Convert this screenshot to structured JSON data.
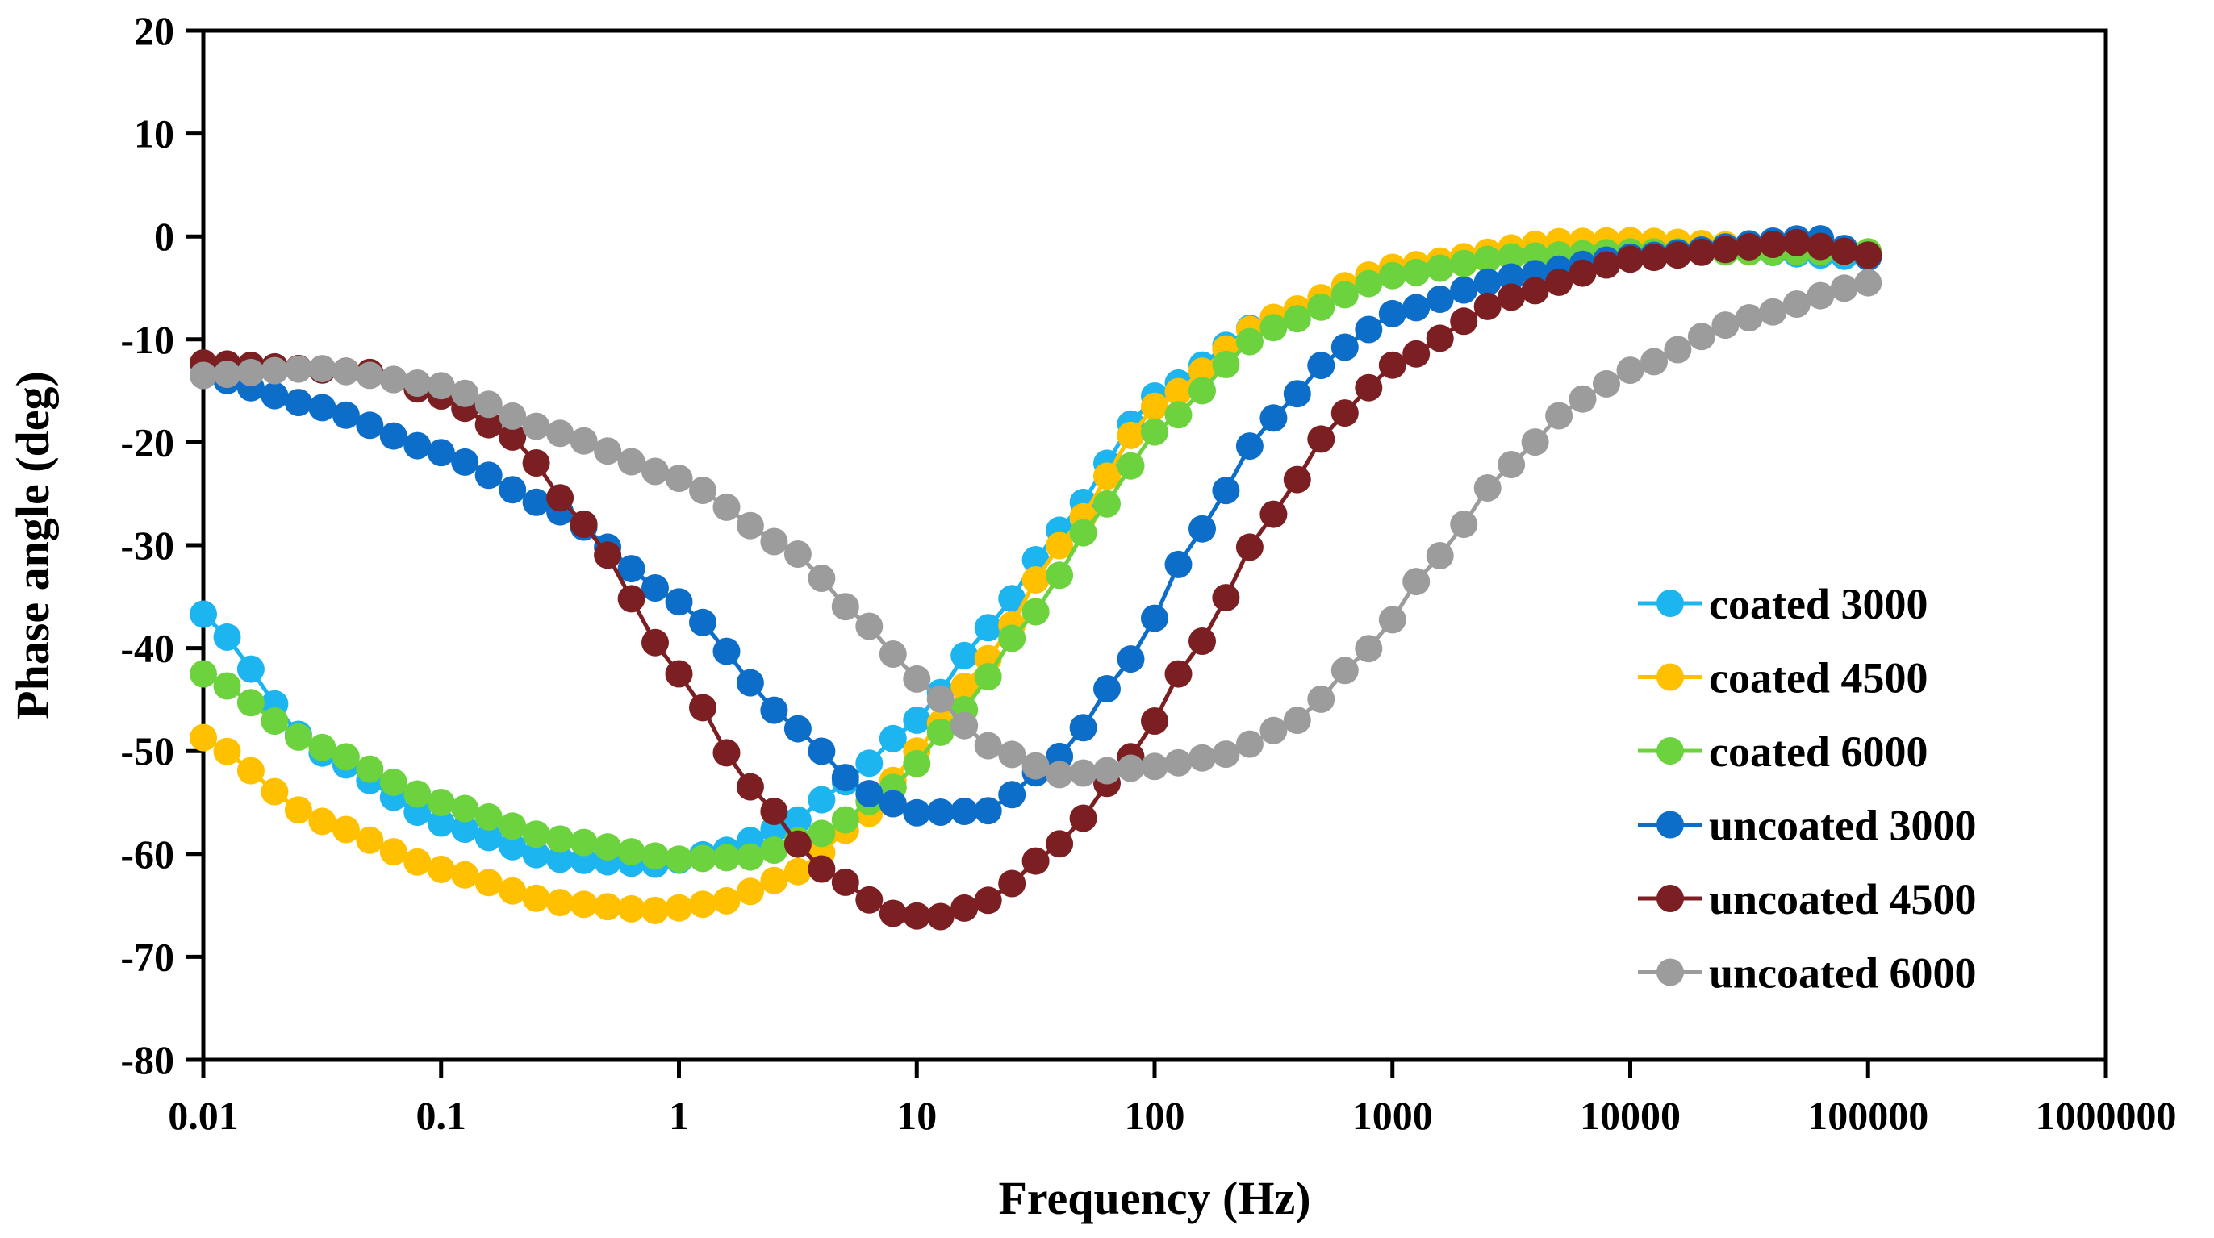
{
  "chart_data": {
    "type": "line",
    "title": "",
    "xlabel": "Frequency (Hz)",
    "ylabel": "Phase angle (deg)",
    "xscale": "log",
    "xlim": [
      0.01,
      1000000
    ],
    "ylim": [
      -80,
      20
    ],
    "xticks": [
      0.01,
      0.1,
      1,
      10,
      100,
      1000,
      10000,
      100000,
      1000000
    ],
    "xtick_labels": [
      "0.01",
      "0.1",
      "1",
      "10",
      "100",
      "1000",
      "10000",
      "100000",
      "1000000"
    ],
    "yticks": [
      -80,
      -70,
      -60,
      -50,
      -40,
      -30,
      -20,
      -10,
      0,
      10,
      20
    ],
    "ytick_labels": [
      "-80",
      "-70",
      "-60",
      "-50",
      "-40",
      "-30",
      "-20",
      "-10",
      "0",
      "10",
      "20"
    ],
    "grid": false,
    "legend_position": "right",
    "x_range_hz": [
      0.01,
      100000
    ],
    "points_per_series": 71,
    "series": [
      {
        "name": "coated 3000",
        "color": "#1CB5F0",
        "anchors": [
          [
            0.01,
            -36.7
          ],
          [
            0.03,
            -50
          ],
          [
            0.1,
            -57
          ],
          [
            0.3,
            -60.5
          ],
          [
            0.8,
            -61
          ],
          [
            1.5,
            -59.8
          ],
          [
            3,
            -57
          ],
          [
            5,
            -53
          ],
          [
            10,
            -47
          ],
          [
            20,
            -38
          ],
          [
            40,
            -28.5
          ],
          [
            100,
            -15.5
          ],
          [
            300,
            -8
          ],
          [
            1000,
            -3.5
          ],
          [
            3000,
            -1.5
          ],
          [
            10000,
            -0.8
          ],
          [
            100000,
            -2
          ]
        ]
      },
      {
        "name": "coated 4500",
        "color": "#FFC000",
        "anchors": [
          [
            0.01,
            -48.7
          ],
          [
            0.03,
            -56.7
          ],
          [
            0.1,
            -61.5
          ],
          [
            0.3,
            -64.7
          ],
          [
            0.8,
            -65.5
          ],
          [
            1.5,
            -64.7
          ],
          [
            3,
            -62
          ],
          [
            6,
            -56.5
          ],
          [
            10,
            -50
          ],
          [
            20,
            -41
          ],
          [
            40,
            -30
          ],
          [
            100,
            -16.5
          ],
          [
            300,
            -8
          ],
          [
            1000,
            -3
          ],
          [
            5000,
            -0.5
          ],
          [
            10000,
            -0.4
          ],
          [
            100000,
            -1.5
          ]
        ]
      },
      {
        "name": "coated 6000",
        "color": "#6CD23E",
        "anchors": [
          [
            0.01,
            -42.5
          ],
          [
            0.03,
            -49.5
          ],
          [
            0.1,
            -55
          ],
          [
            0.3,
            -58.5
          ],
          [
            1,
            -60.5
          ],
          [
            2,
            -60.3
          ],
          [
            4,
            -58
          ],
          [
            8,
            -53.5
          ],
          [
            15,
            -46.5
          ],
          [
            30,
            -37
          ],
          [
            60,
            -26.5
          ],
          [
            100,
            -19
          ],
          [
            300,
            -9
          ],
          [
            1000,
            -3.8
          ],
          [
            3000,
            -2
          ],
          [
            10000,
            -1.5
          ],
          [
            100000,
            -1.5
          ]
        ]
      },
      {
        "name": "uncoated 3000",
        "color": "#0C6EC8",
        "anchors": [
          [
            0.01,
            -13.5
          ],
          [
            0.03,
            -16.5
          ],
          [
            0.1,
            -21
          ],
          [
            0.3,
            -26.5
          ],
          [
            1,
            -35.5
          ],
          [
            3,
            -47.5
          ],
          [
            6,
            -54
          ],
          [
            10,
            -56
          ],
          [
            20,
            -55.8
          ],
          [
            40,
            -50.5
          ],
          [
            80,
            -41
          ],
          [
            150,
            -29
          ],
          [
            300,
            -18
          ],
          [
            600,
            -11
          ],
          [
            1000,
            -7.5
          ],
          [
            3000,
            -4
          ],
          [
            10000,
            -2
          ],
          [
            60000,
            -0.1
          ],
          [
            100000,
            -2
          ]
        ]
      },
      {
        "name": "uncoated 4500",
        "color": "#7B1F22",
        "anchors": [
          [
            0.01,
            -12.3
          ],
          [
            0.05,
            -13.2
          ],
          [
            0.1,
            -15.5
          ],
          [
            0.2,
            -19.5
          ],
          [
            0.4,
            -28
          ],
          [
            1,
            -42.5
          ],
          [
            2,
            -53.5
          ],
          [
            4,
            -61.5
          ],
          [
            8,
            -65.8
          ],
          [
            12,
            -66.2
          ],
          [
            20,
            -64.5
          ],
          [
            40,
            -59
          ],
          [
            80,
            -50.5
          ],
          [
            150,
            -40
          ],
          [
            300,
            -27.5
          ],
          [
            600,
            -17.5
          ],
          [
            1000,
            -12.5
          ],
          [
            3000,
            -6
          ],
          [
            10000,
            -2.2
          ],
          [
            50000,
            -0.6
          ],
          [
            100000,
            -1.8
          ]
        ]
      },
      {
        "name": "uncoated 6000",
        "color": "#9C9C9C",
        "anchors": [
          [
            0.01,
            -13.5
          ],
          [
            0.03,
            -12.8
          ],
          [
            0.1,
            -14.5
          ],
          [
            0.3,
            -19
          ],
          [
            1,
            -23.5
          ],
          [
            3,
            -30.5
          ],
          [
            6,
            -37.5
          ],
          [
            10,
            -43
          ],
          [
            20,
            -49.5
          ],
          [
            40,
            -52.3
          ],
          [
            100,
            -51.5
          ],
          [
            200,
            -50.3
          ],
          [
            400,
            -47
          ],
          [
            800,
            -40
          ],
          [
            1500,
            -31.5
          ],
          [
            3000,
            -22.5
          ],
          [
            6000,
            -16
          ],
          [
            10000,
            -13
          ],
          [
            30000,
            -8
          ],
          [
            100000,
            -4.5
          ]
        ]
      }
    ]
  }
}
